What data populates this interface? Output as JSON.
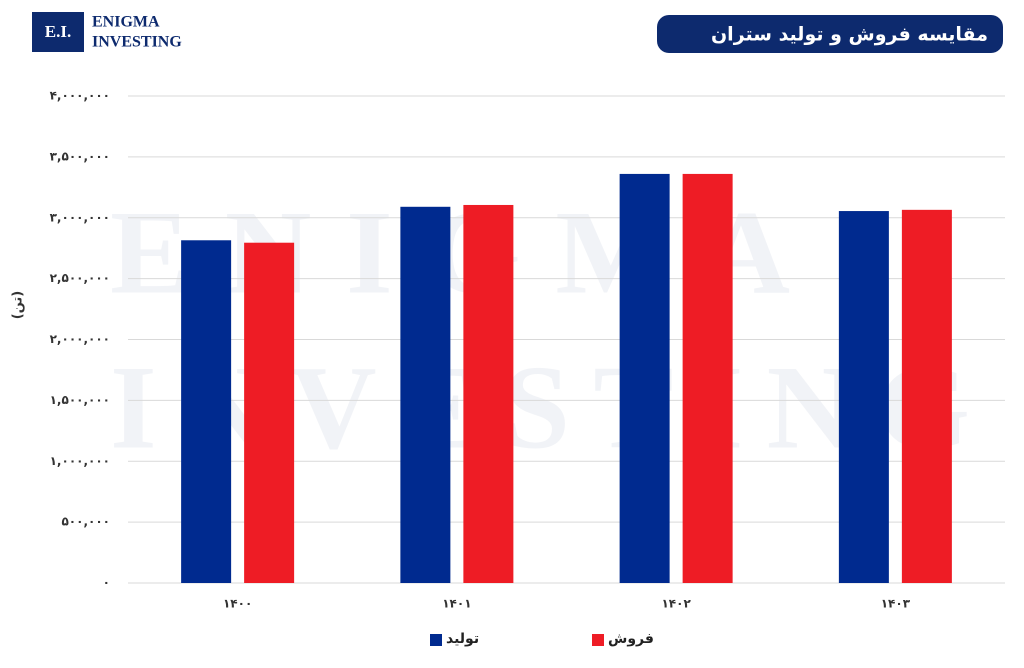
{
  "logo": {
    "mark": "E.I.",
    "line1": "Enigma",
    "line2": "Investing"
  },
  "watermark": {
    "line1": "Enigma",
    "line2": "Investing"
  },
  "chart_data": {
    "type": "bar",
    "title": "مقایسه فروش و تولید ستران",
    "y_label": "(تن)",
    "categories": [
      "۱۴۰۰",
      "۱۴۰۱",
      "۱۴۰۲",
      "۱۴۰۳"
    ],
    "series": [
      {
        "name": "تولید",
        "color": "#002a8f",
        "values": [
          2815000,
          3090000,
          3360000,
          3055000
        ]
      },
      {
        "name": "فروش",
        "color": "#ee1c25",
        "values": [
          2795000,
          3105000,
          3360000,
          3065000
        ]
      }
    ],
    "ylim": [
      0,
      4000000
    ],
    "yticks": [
      {
        "value": 0,
        "label": "۰"
      },
      {
        "value": 500000,
        "label": "۵۰۰,۰۰۰"
      },
      {
        "value": 1000000,
        "label": "۱,۰۰۰,۰۰۰"
      },
      {
        "value": 1500000,
        "label": "۱,۵۰۰,۰۰۰"
      },
      {
        "value": 2000000,
        "label": "۲,۰۰۰,۰۰۰"
      },
      {
        "value": 2500000,
        "label": "۲,۵۰۰,۰۰۰"
      },
      {
        "value": 3000000,
        "label": "۳,۰۰۰,۰۰۰"
      },
      {
        "value": 3500000,
        "label": "۳,۵۰۰,۰۰۰"
      },
      {
        "value": 4000000,
        "label": "۴,۰۰۰,۰۰۰"
      }
    ],
    "grid": true
  }
}
